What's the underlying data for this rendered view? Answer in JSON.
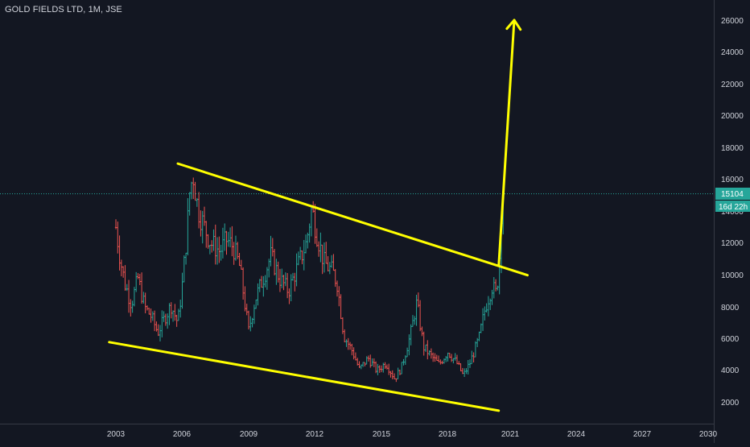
{
  "symbol": {
    "title": "GOLD FIELDS LTD, 1M, JSE"
  },
  "price_axis": {
    "ticks": [
      "2000",
      "4000",
      "6000",
      "8000",
      "10000",
      "12000",
      "14000",
      "16000",
      "18000",
      "20000",
      "22000",
      "24000",
      "26000"
    ]
  },
  "time_axis": {
    "ticks": [
      "2003",
      "2006",
      "2009",
      "2012",
      "2015",
      "2018",
      "2021",
      "2024",
      "2027",
      "2030"
    ]
  },
  "last_price": {
    "value": "15104",
    "countdown": "16d 22h"
  },
  "colors": {
    "background": "#131722",
    "up": "#26a69a",
    "down": "#ef5350",
    "drawing": "#ffff00",
    "price_line": "#26a69a",
    "axis_text": "#d1d4dc"
  },
  "chart_data": {
    "type": "candlestick-ohlc",
    "interval": "1M",
    "y_range": [
      1000,
      27500
    ],
    "x_range_year": [
      2001.5,
      2030.3
    ],
    "series_close_by_year": [
      [
        2003.0,
        13000
      ],
      [
        2003.2,
        11000
      ],
      [
        2003.4,
        9500
      ],
      [
        2003.7,
        8200
      ],
      [
        2004.0,
        9800
      ],
      [
        2004.3,
        8000
      ],
      [
        2004.6,
        7400
      ],
      [
        2004.9,
        6400
      ],
      [
        2005.2,
        7300
      ],
      [
        2005.5,
        8100
      ],
      [
        2005.8,
        7000
      ],
      [
        2006.0,
        9400
      ],
      [
        2006.2,
        12500
      ],
      [
        2006.35,
        15500
      ],
      [
        2006.5,
        16200
      ],
      [
        2006.7,
        14200
      ],
      [
        2007.0,
        13000
      ],
      [
        2007.3,
        12000
      ],
      [
        2007.7,
        11500
      ],
      [
        2008.0,
        12200
      ],
      [
        2008.3,
        11800
      ],
      [
        2008.6,
        10500
      ],
      [
        2008.8,
        8500
      ],
      [
        2009.0,
        6500
      ],
      [
        2009.3,
        8500
      ],
      [
        2009.7,
        10000
      ],
      [
        2010.0,
        11200
      ],
      [
        2010.4,
        9800
      ],
      [
        2010.8,
        9000
      ],
      [
        2011.2,
        10500
      ],
      [
        2011.6,
        12000
      ],
      [
        2011.85,
        14200
      ],
      [
        2012.1,
        12500
      ],
      [
        2012.4,
        10800
      ],
      [
        2012.8,
        10200
      ],
      [
        2013.0,
        9500
      ],
      [
        2013.3,
        6200
      ],
      [
        2013.7,
        5200
      ],
      [
        2014.0,
        4100
      ],
      [
        2014.4,
        4800
      ],
      [
        2014.8,
        4000
      ],
      [
        2015.2,
        4500
      ],
      [
        2015.6,
        3500
      ],
      [
        2015.9,
        4200
      ],
      [
        2016.3,
        6200
      ],
      [
        2016.6,
        8300
      ],
      [
        2016.9,
        5500
      ],
      [
        2017.2,
        5000
      ],
      [
        2017.6,
        4400
      ],
      [
        2018.0,
        5200
      ],
      [
        2018.4,
        4500
      ],
      [
        2018.7,
        3700
      ],
      [
        2019.0,
        4500
      ],
      [
        2019.4,
        6000
      ],
      [
        2019.7,
        8000
      ],
      [
        2020.0,
        9300
      ],
      [
        2020.2,
        8800
      ],
      [
        2020.35,
        11500
      ],
      [
        2020.45,
        15400
      ],
      [
        2020.55,
        15104
      ]
    ],
    "drawings": [
      {
        "type": "trendline",
        "from": [
          2005.8,
          17000
        ],
        "to": [
          2021.6,
          10000
        ]
      },
      {
        "type": "trendline",
        "from": [
          2002.7,
          5800
        ],
        "to": [
          2020.3,
          1500
        ]
      },
      {
        "type": "arrow",
        "from": [
          2020.3,
          10600
        ],
        "to": [
          2021.0,
          26000
        ]
      }
    ],
    "last_price_line": 15104
  }
}
